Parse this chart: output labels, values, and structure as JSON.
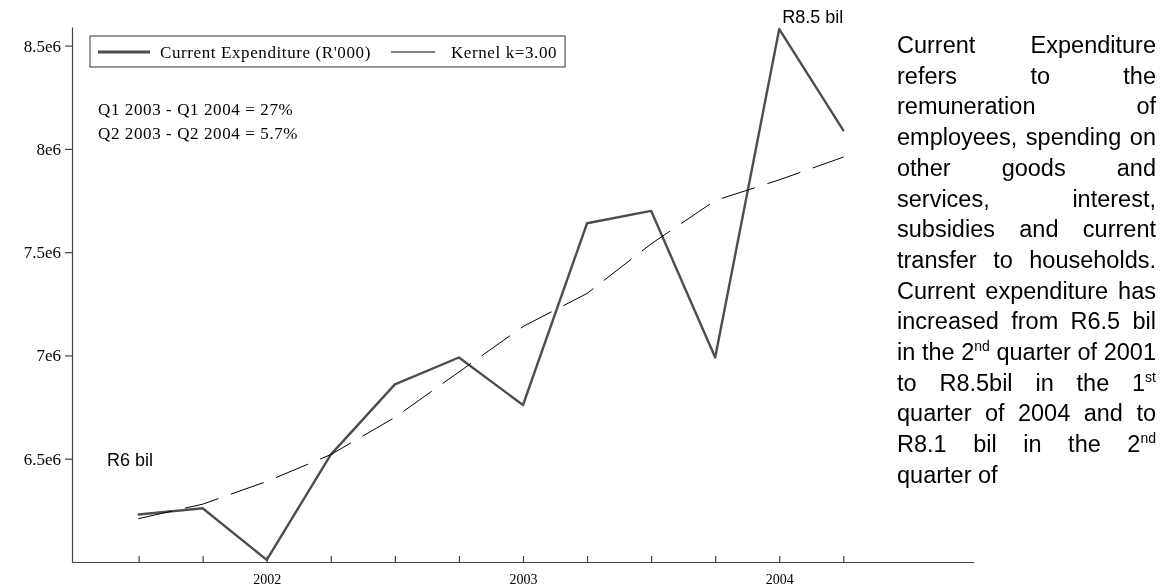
{
  "chart_data": {
    "type": "line",
    "x": [
      2001.5,
      2001.75,
      2002,
      2002.25,
      2002.5,
      2002.75,
      2003,
      2003.25,
      2003.5,
      2003.75,
      2004,
      2004.25
    ],
    "series": [
      {
        "name": "Current Expenditure (R'000)",
        "color": "#4d4d4d",
        "line_style": "solid",
        "values": [
          6230000,
          6260000,
          6010000,
          6520000,
          6860000,
          6990000,
          6760000,
          7640000,
          7700000,
          6990000,
          8580000,
          8090000
        ]
      },
      {
        "name": "Kernel k=3.00",
        "color": "#000000",
        "line_style": "dashed",
        "values": [
          6210000,
          6280000,
          6390000,
          6520000,
          6700000,
          6920000,
          7140000,
          7300000,
          7540000,
          7750000,
          7850000,
          7960000
        ]
      }
    ],
    "xlim": [
      2001.24,
      2004.76
    ],
    "xticks": [
      {
        "value": 2001.5,
        "label": null
      },
      {
        "value": 2001.75,
        "label": null
      },
      2002,
      {
        "value": 2002.25,
        "label": null
      },
      {
        "value": 2002.5,
        "label": null
      },
      {
        "value": 2002.75,
        "label": null
      },
      2003,
      {
        "value": 2003.25,
        "label": null
      },
      {
        "value": 2003.5,
        "label": null
      },
      {
        "value": 2003.75,
        "label": null
      },
      2004,
      {
        "value": 2004.25,
        "label": null
      }
    ],
    "ylim": [
      6000000,
      8590000
    ],
    "yticks": [
      {
        "value": 6500000,
        "label": "6.5e6"
      },
      {
        "value": 7000000,
        "label": "7e6"
      },
      {
        "value": 7500000,
        "label": "7.5e6"
      },
      {
        "value": 8000000,
        "label": "8e6"
      },
      {
        "value": 8500000,
        "label": "8.5e6"
      }
    ],
    "grid": false,
    "legend": "top left",
    "marker": "none",
    "annotations": [
      "Q1 2003 - Q1 2004 = 27%",
      "Q2 2003 - Q2 2004 = 5.7%",
      "R6 bil",
      {
        "text": "R8.5 bil",
        "x": 2004,
        "y": 8580000
      },
      "Current Expenditure refers to the remuneration of employees, spending on other goods and services, interest, subsidies and current transfer to households. Current expenditure has increased from R6.5 bil in the 2$^{nd}$ quarter of 2001 to R8.5bil in the 1$^{st}$ quarter of 2004 and to R8.1 bil in the 2$^{nd}$ quarter of"
    ]
  }
}
